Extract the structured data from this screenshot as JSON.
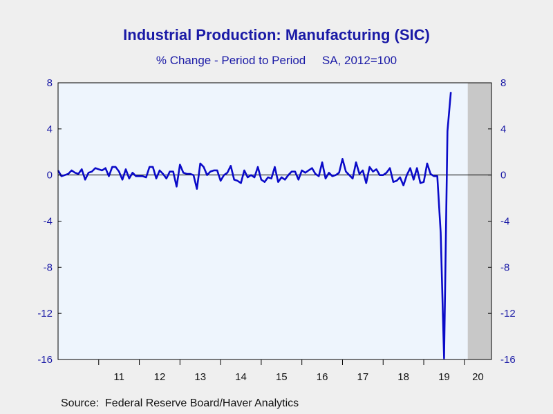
{
  "chart_data": {
    "type": "line",
    "title": "Industrial Production: Manufacturing (SIC)",
    "subtitle": "% Change - Period to Period     SA, 2012=100",
    "source": "Source:  Federal Reserve Board/Haver Analytics",
    "x_start": "2010-01",
    "x_end": "2020-09",
    "x_tick_labels": [
      "11",
      "12",
      "13",
      "14",
      "15",
      "16",
      "17",
      "18",
      "19",
      "20"
    ],
    "ylim": [
      -16,
      8
    ],
    "y_ticks": [
      8,
      4,
      0,
      -4,
      -8,
      -12,
      -16
    ],
    "y_tick_labels": [
      "8",
      "4",
      "0",
      "-4",
      "-8",
      "-12",
      "-16"
    ],
    "recession_shading": {
      "start": "2020-02",
      "end": "2020-09",
      "color": "#c8c8c8"
    },
    "grid": false,
    "zero_line": true,
    "colors": {
      "line": "#0a0ac8",
      "plot_background": "#eef5fd",
      "text": "#1a1aa6"
    },
    "series": [
      {
        "name": "",
        "start": "2010-01",
        "values": [
          0.4,
          -0.1,
          0.0,
          0.1,
          0.4,
          0.2,
          0.1,
          0.5,
          -0.4,
          0.2,
          0.3,
          0.6,
          0.5,
          0.4,
          0.6,
          -0.1,
          0.7,
          0.7,
          0.3,
          -0.4,
          0.5,
          -0.3,
          0.2,
          -0.1,
          -0.1,
          -0.1,
          -0.2,
          0.7,
          0.7,
          -0.3,
          0.4,
          0.1,
          -0.3,
          0.3,
          0.3,
          -1.0,
          0.9,
          0.2,
          0.1,
          0.1,
          0.0,
          -1.2,
          1.0,
          0.7,
          0.0,
          0.3,
          0.4,
          0.4,
          -0.5,
          0.0,
          0.2,
          0.8,
          -0.4,
          -0.5,
          -0.7,
          0.4,
          -0.2,
          0.0,
          -0.2,
          0.7,
          -0.4,
          -0.6,
          -0.2,
          -0.3,
          0.7,
          -0.6,
          -0.2,
          -0.4,
          0.0,
          0.3,
          0.3,
          -0.4,
          0.4,
          0.2,
          0.4,
          0.6,
          0.1,
          -0.1,
          1.1,
          -0.3,
          0.2,
          -0.1,
          0.0,
          0.2,
          1.4,
          0.3,
          0.0,
          -0.3,
          1.1,
          0.1,
          0.4,
          -0.7,
          0.7,
          0.3,
          0.5,
          0.0,
          0.0,
          0.2,
          0.6,
          -0.6,
          -0.5,
          -0.2,
          -0.9,
          0.0,
          0.6,
          -0.4,
          0.6,
          -0.7,
          -0.6,
          1.0,
          0.1,
          -0.1,
          -0.1,
          -5.0,
          -15.9,
          3.8,
          7.2
        ]
      }
    ]
  }
}
